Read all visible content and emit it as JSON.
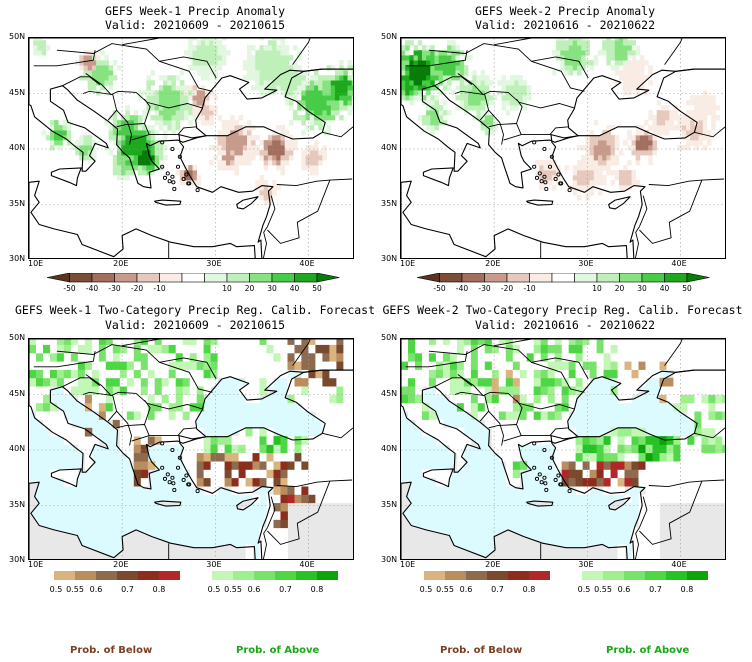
{
  "panels": {
    "tl": {
      "title": "GEFS Week-1 Precip Anomaly",
      "valid": "Valid: 20210609 - 20210615"
    },
    "tr": {
      "title": "GEFS Week-2 Precip Anomaly",
      "valid": "Valid: 20210616 - 20210622"
    },
    "bl": {
      "title": "GEFS Week-1 Two-Category Precip Reg. Calib. Forecast",
      "valid": "Valid: 20210609 - 20210615"
    },
    "br": {
      "title": "GEFS Week-2 Two-Category Precip Reg. Calib. Forecast",
      "valid": "Valid: 20210616 - 20210622"
    }
  },
  "axes": {
    "lat_labels": [
      "50N",
      "45N",
      "40N",
      "35N",
      "30N"
    ],
    "lon_labels": [
      "10E",
      "20E",
      "30E",
      "40E"
    ]
  },
  "anomaly_colorbar": {
    "ticks": [
      "-50",
      "-40",
      "-30",
      "-20",
      "-10",
      "10",
      "20",
      "30",
      "40",
      "50"
    ],
    "colors": [
      "#5a3423",
      "#7d4e37",
      "#a26f5e",
      "#c79a8b",
      "#e6c9bc",
      "#f8ece4",
      "#ffffff",
      "#e1f7e0",
      "#bff0b9",
      "#86e380",
      "#46cc46",
      "#1ea81e",
      "#087c08"
    ]
  },
  "below_colorbar": {
    "ticks": [
      "0.5",
      "0.55",
      "0.6",
      "0.7",
      "0.8"
    ],
    "colors": [
      "#d9b47f",
      "#b98d5e",
      "#8e6a4e",
      "#7a4a2e",
      "#8c2e1e",
      "#b2282a"
    ],
    "label": "Prob. of Below",
    "label_color": "#7b3f22"
  },
  "above_colorbar": {
    "ticks": [
      "0.5",
      "0.55",
      "0.6",
      "0.7",
      "0.8"
    ],
    "colors": [
      "#c2f7b5",
      "#9eef8e",
      "#78e36a",
      "#4fd645",
      "#26c226",
      "#0ba40b"
    ],
    "label": "Prob. of Above",
    "label_color": "#18a818"
  },
  "map_colors": {
    "sea_prob": "#dcfbff",
    "no_data": "#e8e8e8",
    "land": "#ffffff",
    "coast": "#000000",
    "grid": "#9a9a9a"
  }
}
